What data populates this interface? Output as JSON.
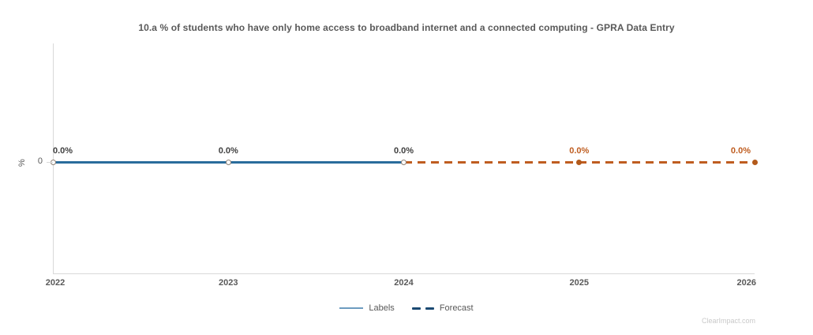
{
  "title": "10.a % of students who have only home access to broadband internet and a connected computing - GPRA Data Entry",
  "watermark": "ClearImpact.com",
  "y_axis": {
    "title": "%",
    "tick_label": "0"
  },
  "legend": [
    {
      "label": "Labels",
      "swatch": "solid-line",
      "color": "#6d9cc0"
    },
    {
      "label": "Forecast",
      "swatch": "dashed-line",
      "color": "#1b4a72"
    }
  ],
  "colors": {
    "actual_line": "#2a6c9c",
    "forecast_line": "#bf5d20",
    "forecast_marker": "#b35a1b",
    "open_marker_border": "#8e8075",
    "axis_line": "#d9d9d9",
    "label_dark": "#404040",
    "axis_text": "#595959"
  },
  "chart_data": {
    "type": "line",
    "title": "10.a % of students who have only home access to broadband internet and a connected computing - GPRA Data Entry",
    "categories": [
      "2022",
      "2023",
      "2024",
      "2025",
      "2026"
    ],
    "series": [
      {
        "name": "Labels",
        "x": [
          "2022",
          "2023",
          "2024"
        ],
        "values": [
          0.0,
          0.0,
          0.0
        ],
        "style": "solid",
        "color": "#2a6c9c",
        "marker": "open-circle"
      },
      {
        "name": "Forecast",
        "x": [
          "2024",
          "2025",
          "2026"
        ],
        "values": [
          0.0,
          0.0,
          0.0
        ],
        "style": "dashed",
        "color": "#bf5d20",
        "marker": "filled-circle"
      }
    ],
    "data_labels": [
      "0.0%",
      "0.0%",
      "0.0%",
      "0.0%",
      "0.0%"
    ],
    "xlabel": "",
    "ylabel": "%",
    "y_ticks": [
      "0"
    ],
    "ylim": [
      0,
      0
    ],
    "grid": false,
    "legend_position": "bottom-center"
  }
}
